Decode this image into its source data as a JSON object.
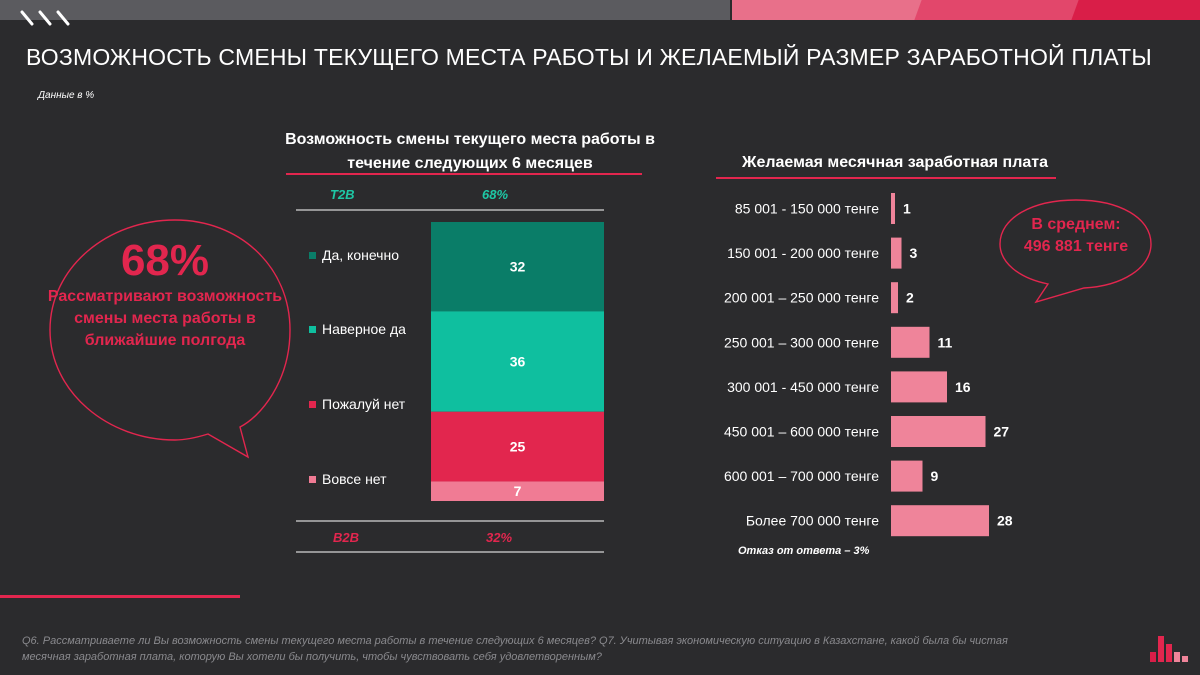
{
  "title": "ВОЗМОЖНОСТЬ СМЕНЫ ТЕКУЩЕГО МЕСТА РАБОТЫ И ЖЕЛАЕМЫЙ РАЗМЕР ЗАРАБОТНОЙ ПЛАТЫ",
  "note": "Данные в %",
  "callout": {
    "percent": "68%",
    "description": "Рассматривают возможность смены места работы в ближайшие полгода"
  },
  "average": {
    "label": "В среднем:",
    "value": "496 881 тенге"
  },
  "refusal_note": "Отказ от ответа – 3%",
  "footer": "Q6. Рассматриваете ли Вы возможность смены текущего места работы в течение следующих 6 месяцев? Q7. Учитывая экономическую ситуацию в Казахстане, какой была бы чистая месячная заработная плата, которую Вы хотели бы получить, чтобы чувствовать себя удовлетворенным?",
  "colors": {
    "accent_red": "#e2264e",
    "pink": "#ef849a",
    "dark_teal": "#0a7d68",
    "teal": "#0fbf9f",
    "light_pink": "#f07b94",
    "background": "#2b2b2d"
  },
  "chart_data": [
    {
      "type": "bar",
      "stacked": true,
      "title": "Возможность смены текущего места работы в течение следующих 6 месяцев",
      "categories": [
        "Да, конечно",
        "Наверное да",
        "Пожалуй нет",
        "Вовсе нет"
      ],
      "values": [
        32,
        36,
        25,
        7
      ],
      "colors": [
        "#0a7d68",
        "#0fbf9f",
        "#e2264e",
        "#f07b94"
      ],
      "t2b": {
        "label": "T2B",
        "value": "68%"
      },
      "b2b": {
        "label": "B2B",
        "value": "32%"
      },
      "ylim": [
        0,
        100
      ]
    },
    {
      "type": "bar",
      "orientation": "horizontal",
      "title": "Желаемая месячная заработная плата",
      "categories": [
        "85 001 - 150 000 тенге",
        "150 001 - 200 000 тенге",
        "200 001 – 250 000 тенге",
        "250 001 – 300 000 тенге",
        "300 001 - 450 000 тенге",
        "450 001 – 600 000 тенге",
        "600 001 – 700 000 тенге",
        "Более 700 000 тенге"
      ],
      "values": [
        1,
        3,
        2,
        11,
        16,
        27,
        9,
        28
      ],
      "color": "#ef849a",
      "xlim": [
        0,
        28
      ]
    }
  ]
}
